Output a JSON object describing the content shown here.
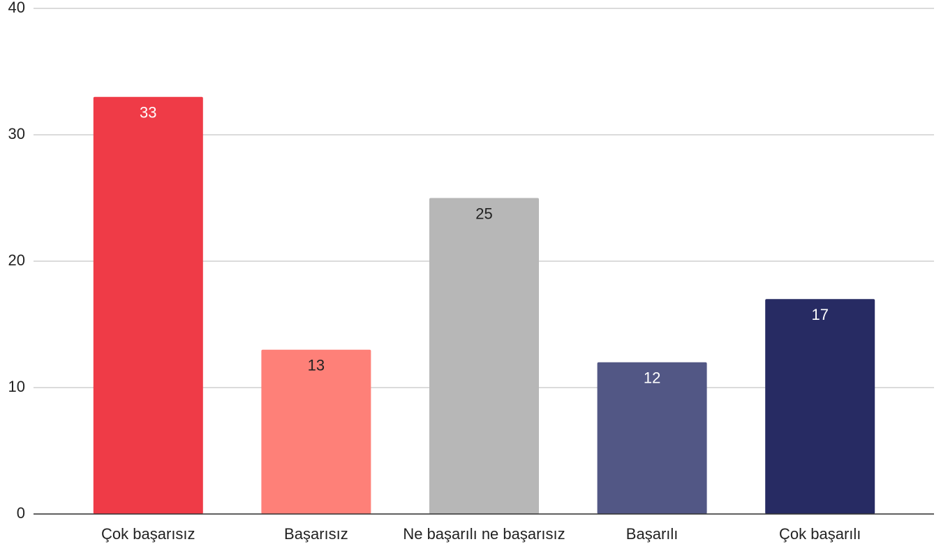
{
  "chart_data": {
    "type": "bar",
    "categories": [
      "Çok başarısız",
      "Başarısız",
      "Ne başarılı ne başarısız",
      "Başarılı",
      "Çok başarılı"
    ],
    "values": [
      33,
      13,
      25,
      12,
      17
    ],
    "colors": [
      "#ef3b47",
      "#fe8078",
      "#b7b7b7",
      "#525785",
      "#272b63"
    ],
    "ylim": [
      0,
      40
    ],
    "yticks": [
      0,
      10,
      20,
      30,
      40
    ],
    "grid": true
  }
}
